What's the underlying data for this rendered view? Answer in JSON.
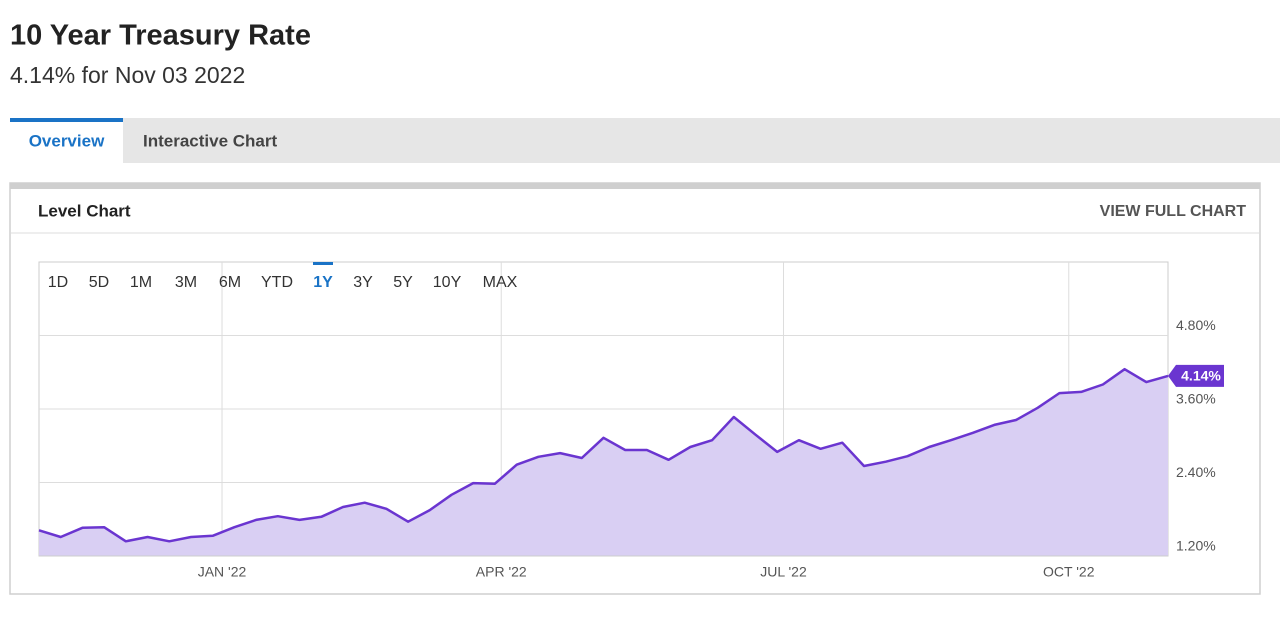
{
  "header": {
    "title": "10 Year Treasury Rate",
    "subtitle": "4.14% for Nov 03 2022"
  },
  "tabs": {
    "items": [
      "Overview",
      "Interactive Chart"
    ],
    "active": "Overview"
  },
  "panel": {
    "title": "Level Chart",
    "link": "VIEW FULL CHART"
  },
  "ranges": {
    "items": [
      "1D",
      "5D",
      "1M",
      "3M",
      "6M",
      "YTD",
      "1Y",
      "3Y",
      "5Y",
      "10Y",
      "MAX"
    ],
    "active": "1Y"
  },
  "chart_data": {
    "type": "area",
    "color": "#6a35d0",
    "fill": "#d9cff3",
    "values": [
      1.62,
      1.51,
      1.66,
      1.67,
      1.44,
      1.51,
      1.44,
      1.51,
      1.53,
      1.67,
      1.79,
      1.85,
      1.79,
      1.84,
      2.0,
      2.07,
      1.97,
      1.76,
      1.95,
      2.2,
      2.39,
      2.38,
      2.69,
      2.82,
      2.88,
      2.8,
      3.13,
      2.93,
      2.93,
      2.77,
      2.98,
      3.09,
      3.47,
      3.18,
      2.9,
      3.09,
      2.95,
      3.05,
      2.67,
      2.74,
      2.83,
      2.98,
      3.09,
      3.21,
      3.34,
      3.42,
      3.62,
      3.86,
      3.88,
      4.0,
      4.25,
      4.04,
      4.14
    ],
    "current_label": "4.14%",
    "xlim": [
      0,
      52
    ],
    "xticks": [
      {
        "value": 8.43,
        "label": "JAN '22"
      },
      {
        "value": 21.29,
        "label": "APR '22"
      },
      {
        "value": 34.29,
        "label": "JUL '22"
      },
      {
        "value": 47.43,
        "label": "OCT '22"
      }
    ],
    "ylim": [
      1.2,
      6.0
    ],
    "yticks": [
      {
        "value": 1.2,
        "label": "1.20%"
      },
      {
        "value": 2.4,
        "label": "2.40%"
      },
      {
        "value": 3.6,
        "label": "3.60%"
      },
      {
        "value": 4.8,
        "label": "4.80%"
      }
    ],
    "grid": true
  }
}
